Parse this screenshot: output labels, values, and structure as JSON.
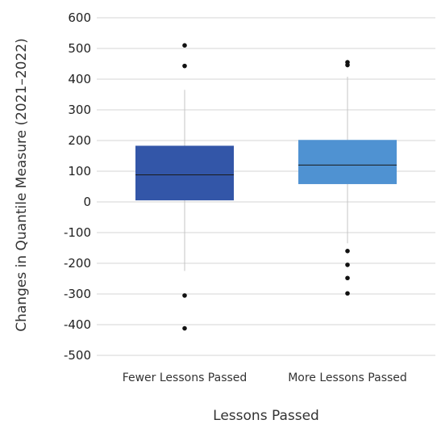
{
  "chart_data": {
    "type": "box",
    "title": "",
    "xlabel": "Lessons Passed",
    "ylabel": "Changes in Quantile Measure (2021–2022)",
    "ylim": [
      -500,
      600
    ],
    "yticks": [
      600,
      500,
      400,
      300,
      200,
      100,
      0,
      -100,
      -200,
      -300,
      -400,
      -500
    ],
    "ytick_labels": [
      "600",
      "500",
      "400",
      "300",
      "200",
      "100",
      "0",
      "-100",
      "-200",
      "-300",
      "-400",
      "-500"
    ],
    "grid": "horizontal",
    "categories": [
      "Fewer Lessons Passed",
      "More Lessons Passed"
    ],
    "boxes": [
      {
        "category": "Fewer Lessons Passed",
        "color": "#3356a8",
        "whisker_low": -225,
        "q1": 5,
        "median": 88,
        "q3": 183,
        "whisker_high": 365,
        "outliers": [
          510,
          443,
          -305,
          -412
        ]
      },
      {
        "category": "More Lessons Passed",
        "color": "#4f92d2",
        "whisker_low": -135,
        "q1": 58,
        "median": 120,
        "q3": 202,
        "whisker_high": 408,
        "outliers": [
          455,
          446,
          -160,
          -205,
          -248,
          -298
        ]
      }
    ]
  }
}
